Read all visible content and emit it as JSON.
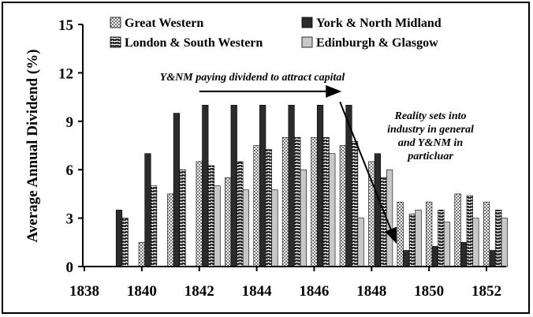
{
  "chart_data": {
    "type": "bar",
    "title": "",
    "xlabel": "",
    "ylabel": "Average Annual Dividend (%)",
    "ylim": [
      0,
      15
    ],
    "yticks": [
      0,
      3,
      6,
      9,
      12,
      15
    ],
    "grid": false,
    "legend_position": "top",
    "categories": [
      "1838",
      "1839",
      "1840",
      "1841",
      "1842",
      "1843",
      "1844",
      "1845",
      "1846",
      "1847",
      "1848",
      "1849",
      "1850",
      "1851",
      "1852"
    ],
    "xtick_labels": [
      "1838",
      "1840",
      "1842",
      "1844",
      "1846",
      "1848",
      "1850",
      "1852"
    ],
    "series": [
      {
        "name": "Great Western",
        "pattern": "light-check",
        "values": [
          0,
          0,
          1.5,
          4.5,
          6.5,
          5.5,
          7.5,
          8,
          8,
          7.5,
          6.5,
          4,
          4,
          4.5,
          4
        ]
      },
      {
        "name": "York & North Midland",
        "pattern": "solid-dark",
        "values": [
          0,
          3.5,
          7,
          9.5,
          10,
          10,
          10,
          10,
          10,
          10,
          7,
          1,
          1.25,
          1.5,
          1
        ]
      },
      {
        "name": "London & South Western",
        "pattern": "dark-brick",
        "values": [
          0,
          3,
          5,
          6,
          6.25,
          6.5,
          7.25,
          8,
          8,
          7.75,
          5.5,
          3.25,
          3.5,
          4.4,
          3.5
        ]
      },
      {
        "name": "Edinburgh & Glasgow",
        "pattern": "light-solid",
        "values": [
          0,
          0,
          0,
          0,
          5,
          4.75,
          4.75,
          6,
          7,
          3,
          6,
          3.5,
          2.75,
          3,
          3
        ]
      }
    ],
    "annotations": [
      {
        "text": "Y&NM paying dividend to attract capital",
        "arrow_from": [
          "1842",
          10.85
        ],
        "arrow_to": [
          "1846.9",
          10.85
        ]
      },
      {
        "lines": [
          "Reality sets into",
          "industry in general",
          "and Y&NM in",
          "particluar"
        ],
        "arrow_from": [
          "1846.9",
          10.2
        ],
        "arrow_to": [
          "1848.85",
          1.5
        ]
      }
    ]
  },
  "colors": {
    "york_north_midland": "#2b2b2b",
    "edinburgh_glasgow": "#c8c8c8",
    "pattern_dark": "#3a3a3a",
    "pattern_light": "#ffffff"
  }
}
